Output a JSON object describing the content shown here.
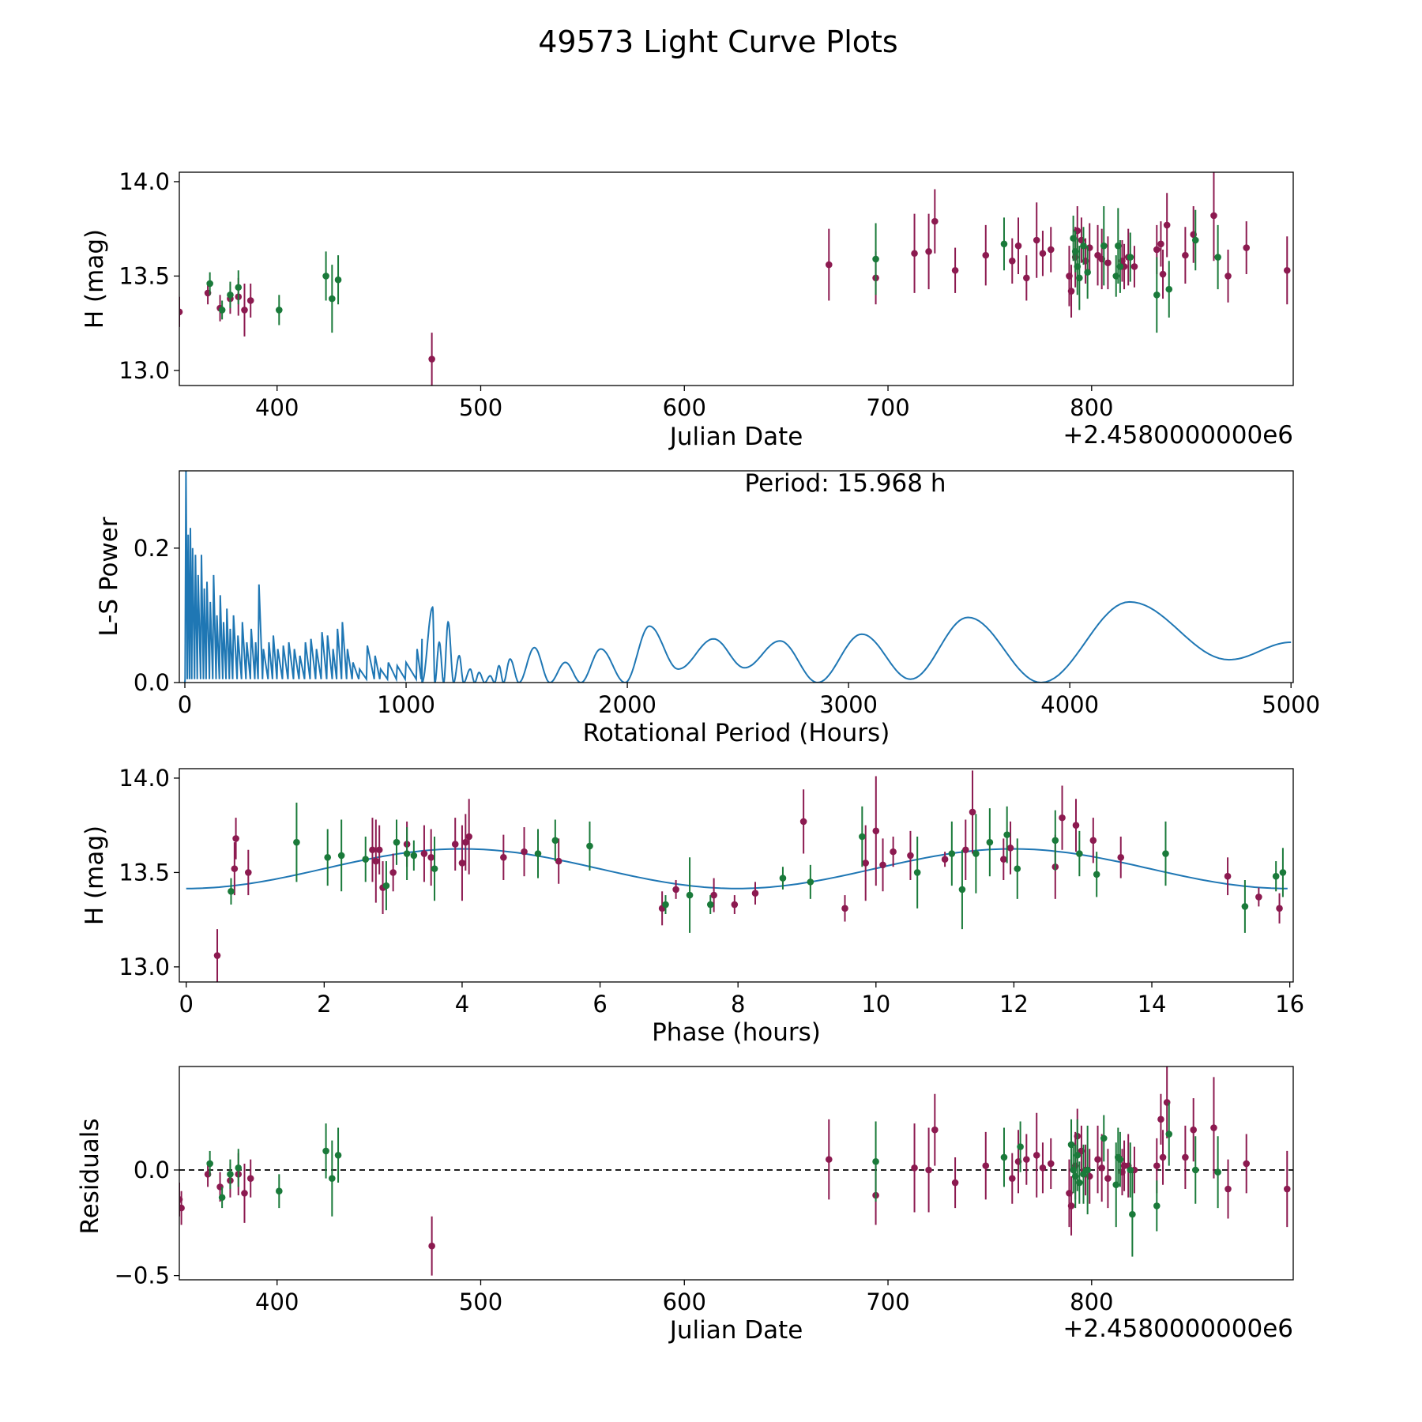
{
  "figure_title": "49573 Light Curve Plots",
  "colors": {
    "red": "#8c1a50",
    "green": "#1a7a3a",
    "curve": "#1f77b4"
  },
  "chart_data": [
    {
      "type": "scatter",
      "title": "",
      "xlabel": "Julian Date",
      "ylabel": "H (mag)",
      "offset_text": "+2.4580000000e6",
      "xlim": [
        352,
        899
      ],
      "ylim": [
        12.92,
        14.05
      ],
      "xticks": [
        400,
        500,
        600,
        700,
        800
      ],
      "yticks": [
        13.0,
        13.5,
        14.0
      ],
      "series": [
        {
          "name": "red",
          "x": [
            352,
            366,
            372,
            377,
            381,
            384,
            387,
            476,
            671,
            694,
            713,
            720,
            723,
            733,
            748,
            761,
            764,
            768,
            773,
            776,
            780,
            789,
            790,
            792,
            793,
            795,
            797,
            799,
            803,
            805,
            808,
            815,
            816,
            818,
            821,
            832,
            834,
            835,
            837,
            846,
            850,
            860,
            867,
            876,
            896
          ],
          "y": [
            13.31,
            13.41,
            13.33,
            13.38,
            13.39,
            13.32,
            13.37,
            13.06,
            13.56,
            13.49,
            13.62,
            13.63,
            13.79,
            13.53,
            13.61,
            13.58,
            13.66,
            13.49,
            13.69,
            13.62,
            13.64,
            13.5,
            13.42,
            13.6,
            13.74,
            13.69,
            13.58,
            13.65,
            13.61,
            13.59,
            13.57,
            13.58,
            13.55,
            13.6,
            13.55,
            13.64,
            13.67,
            13.51,
            13.77,
            13.61,
            13.72,
            13.82,
            13.5,
            13.65,
            13.53
          ],
          "err": [
            0.08,
            0.06,
            0.07,
            0.08,
            0.1,
            0.14,
            0.09,
            0.14,
            0.19,
            0.14,
            0.21,
            0.2,
            0.17,
            0.12,
            0.16,
            0.12,
            0.15,
            0.12,
            0.2,
            0.12,
            0.12,
            0.16,
            0.14,
            0.16,
            0.13,
            0.12,
            0.12,
            0.13,
            0.16,
            0.16,
            0.14,
            0.11,
            0.12,
            0.15,
            0.11,
            0.13,
            0.12,
            0.13,
            0.17,
            0.15,
            0.15,
            0.24,
            0.14,
            0.14,
            0.18
          ]
        },
        {
          "name": "green",
          "x": [
            367,
            373,
            377,
            381,
            401,
            424,
            427,
            430,
            694,
            757,
            791,
            792,
            793,
            794,
            796,
            798,
            806,
            812,
            813,
            814,
            819,
            832,
            838,
            851,
            862
          ],
          "y": [
            13.46,
            13.32,
            13.4,
            13.44,
            13.32,
            13.5,
            13.38,
            13.48,
            13.59,
            13.67,
            13.7,
            13.63,
            13.55,
            13.49,
            13.66,
            13.52,
            13.66,
            13.5,
            13.66,
            13.55,
            13.6,
            13.4,
            13.43,
            13.69,
            13.6
          ],
          "err": [
            0.06,
            0.05,
            0.07,
            0.09,
            0.08,
            0.13,
            0.18,
            0.13,
            0.19,
            0.14,
            0.12,
            0.11,
            0.15,
            0.17,
            0.1,
            0.14,
            0.21,
            0.11,
            0.2,
            0.14,
            0.13,
            0.2,
            0.15,
            0.16,
            0.17
          ]
        }
      ]
    },
    {
      "type": "line",
      "title": "",
      "xlabel": "Rotational Period (Hours)",
      "ylabel": "L-S Power",
      "annotation": "Period: 15.968 h",
      "xlim": [
        -25,
        5010
      ],
      "ylim": [
        0,
        0.315
      ],
      "xticks": [
        0,
        1000,
        2000,
        3000,
        4000,
        5000
      ],
      "yticks": [
        0.0,
        0.2
      ],
      "noise_peaks": [
        [
          5,
          0.315
        ],
        [
          15,
          0.22
        ],
        [
          25,
          0.23
        ],
        [
          35,
          0.2
        ],
        [
          48,
          0.19
        ],
        [
          60,
          0.16
        ],
        [
          75,
          0.19
        ],
        [
          88,
          0.14
        ],
        [
          100,
          0.15
        ],
        [
          115,
          0.12
        ],
        [
          130,
          0.16
        ],
        [
          145,
          0.1
        ],
        [
          160,
          0.13
        ],
        [
          175,
          0.09
        ],
        [
          190,
          0.11
        ],
        [
          205,
          0.08
        ],
        [
          220,
          0.1
        ],
        [
          240,
          0.07
        ],
        [
          260,
          0.09
        ],
        [
          280,
          0.06
        ],
        [
          300,
          0.08
        ],
        [
          320,
          0.06
        ],
        [
          335,
          0.146
        ],
        [
          355,
          0.05
        ],
        [
          380,
          0.06
        ],
        [
          400,
          0.07
        ],
        [
          420,
          0.05
        ],
        [
          445,
          0.055
        ],
        [
          470,
          0.06
        ],
        [
          495,
          0.05
        ],
        [
          520,
          0.04
        ],
        [
          545,
          0.06
        ],
        [
          570,
          0.065
        ],
        [
          595,
          0.05
        ],
        [
          620,
          0.075
        ],
        [
          645,
          0.07
        ],
        [
          670,
          0.05
        ],
        [
          690,
          0.08
        ],
        [
          712,
          0.09
        ],
        [
          735,
          0.05
        ],
        [
          760,
          0.03
        ],
        [
          790,
          0.02
        ],
        [
          825,
          0.055
        ],
        [
          860,
          0.04
        ],
        [
          885,
          0.02
        ],
        [
          920,
          0.03
        ],
        [
          960,
          0.025
        ],
        [
          1000,
          0.03
        ],
        [
          1050,
          0.05
        ],
        [
          1072,
          0.065
        ]
      ],
      "peaks": [
        [
          1072,
          0.065
        ],
        [
          1120,
          0.112
        ],
        [
          1150,
          0.06
        ],
        [
          1190,
          0.09
        ],
        [
          1240,
          0.04
        ],
        [
          1290,
          0.02
        ],
        [
          1330,
          0.015
        ],
        [
          1380,
          0.01
        ],
        [
          1420,
          0.025
        ],
        [
          1470,
          0.035
        ],
        [
          1580,
          0.052
        ],
        [
          1720,
          0.03
        ],
        [
          1880,
          0.05
        ],
        [
          2100,
          0.084
        ],
        [
          2390,
          0.065
        ],
        [
          2690,
          0.062
        ],
        [
          3060,
          0.072
        ],
        [
          3540,
          0.097
        ],
        [
          4270,
          0.12
        ],
        [
          4720,
          0.034
        ],
        [
          5000,
          0.06
        ]
      ],
      "valleys": [
        [
          1072,
          0.0
        ],
        [
          1130,
          0.0
        ],
        [
          1170,
          0.0
        ],
        [
          1215,
          0.0
        ],
        [
          1260,
          0.0
        ],
        [
          1310,
          0.0
        ],
        [
          1355,
          0.0
        ],
        [
          1400,
          0.0
        ],
        [
          1440,
          0.0
        ],
        [
          1510,
          0.0
        ],
        [
          1650,
          0.0
        ],
        [
          1790,
          0.0
        ],
        [
          1990,
          0.0
        ],
        [
          2230,
          0.02
        ],
        [
          2530,
          0.022
        ],
        [
          2860,
          0.0
        ],
        [
          3280,
          0.005
        ],
        [
          3870,
          0.0
        ]
      ]
    },
    {
      "type": "scatter",
      "title": "",
      "xlabel": "Phase (hours)",
      "ylabel": "H (mag)",
      "xlim": [
        -0.1,
        16.05
      ],
      "ylim": [
        12.92,
        14.05
      ],
      "xticks": [
        0,
        2,
        4,
        6,
        8,
        10,
        12,
        14,
        16
      ],
      "yticks": [
        13.0,
        13.5,
        14.0
      ],
      "model": {
        "period_h": 15.968,
        "mean": 13.52,
        "amp": 0.105,
        "phase_of_min_h": 0.0
      },
      "series": [
        {
          "name": "red",
          "x": [
            0.45,
            0.7,
            0.72,
            0.9,
            2.7,
            2.75,
            2.8,
            2.85,
            3.0,
            3.2,
            3.45,
            3.55,
            3.9,
            4.0,
            4.05,
            4.1,
            4.6,
            4.9,
            5.4,
            6.9,
            7.1,
            7.65,
            7.95,
            8.25,
            8.95,
            9.55,
            9.85,
            10.0,
            10.1,
            10.25,
            10.5,
            11.0,
            11.3,
            11.4,
            11.85,
            11.95,
            12.6,
            12.7,
            12.9,
            13.15,
            13.55,
            15.1,
            15.55,
            15.85
          ],
          "y": [
            13.06,
            13.52,
            13.68,
            13.5,
            13.62,
            13.56,
            13.62,
            13.42,
            13.5,
            13.65,
            13.6,
            13.58,
            13.65,
            13.55,
            13.66,
            13.69,
            13.58,
            13.61,
            13.56,
            13.31,
            13.41,
            13.38,
            13.33,
            13.39,
            13.77,
            13.31,
            13.55,
            13.72,
            13.54,
            13.61,
            13.59,
            13.57,
            13.62,
            13.82,
            13.57,
            13.63,
            13.53,
            13.79,
            13.75,
            13.67,
            13.58,
            13.48,
            13.37,
            13.31
          ],
          "err": [
            0.14,
            0.14,
            0.11,
            0.12,
            0.17,
            0.22,
            0.13,
            0.14,
            0.1,
            0.12,
            0.15,
            0.15,
            0.14,
            0.2,
            0.15,
            0.2,
            0.12,
            0.13,
            0.12,
            0.09,
            0.05,
            0.09,
            0.05,
            0.06,
            0.17,
            0.07,
            0.2,
            0.29,
            0.14,
            0.08,
            0.13,
            0.04,
            0.16,
            0.22,
            0.11,
            0.14,
            0.17,
            0.17,
            0.14,
            0.12,
            0.11,
            0.1,
            0.05,
            0.08
          ]
        },
        {
          "name": "green",
          "x": [
            0.65,
            1.6,
            2.05,
            2.25,
            2.6,
            2.9,
            3.05,
            3.2,
            3.3,
            3.6,
            5.1,
            5.35,
            5.85,
            6.95,
            7.3,
            7.6,
            8.65,
            9.05,
            9.8,
            10.6,
            11.1,
            11.25,
            11.45,
            11.65,
            11.9,
            12.05,
            12.6,
            12.95,
            13.2,
            14.2,
            15.35,
            15.8,
            15.9
          ],
          "y": [
            13.4,
            13.66,
            13.58,
            13.59,
            13.57,
            13.43,
            13.66,
            13.6,
            13.59,
            13.52,
            13.6,
            13.67,
            13.64,
            13.33,
            13.38,
            13.33,
            13.47,
            13.45,
            13.69,
            13.5,
            13.6,
            13.41,
            13.6,
            13.66,
            13.7,
            13.52,
            13.67,
            13.6,
            13.49,
            13.6,
            13.32,
            13.48,
            13.5
          ],
          "err": [
            0.07,
            0.21,
            0.15,
            0.19,
            0.12,
            0.13,
            0.12,
            0.14,
            0.08,
            0.17,
            0.13,
            0.11,
            0.13,
            0.05,
            0.2,
            0.05,
            0.06,
            0.09,
            0.16,
            0.19,
            0.17,
            0.21,
            0.21,
            0.18,
            0.15,
            0.16,
            0.16,
            0.12,
            0.12,
            0.17,
            0.14,
            0.08,
            0.13
          ]
        }
      ]
    },
    {
      "type": "scatter",
      "title": "",
      "xlabel": "Julian Date",
      "ylabel": "Residuals",
      "offset_text": "+2.4580000000e6",
      "xlim": [
        352,
        899
      ],
      "ylim": [
        -0.52,
        0.49
      ],
      "xticks": [
        400,
        500,
        600,
        700,
        800
      ],
      "yticks": [
        -0.5,
        0.0
      ],
      "ytick_labels": [
        "−0.5",
        "0.0"
      ],
      "reference_line": 0.0,
      "series": [
        {
          "name": "red",
          "x": [
            352,
            353,
            366,
            372,
            377,
            381,
            384,
            387,
            476,
            671,
            694,
            713,
            720,
            723,
            733,
            748,
            761,
            764,
            768,
            773,
            776,
            780,
            789,
            790,
            792,
            793,
            795,
            797,
            799,
            803,
            805,
            808,
            815,
            816,
            818,
            821,
            832,
            834,
            835,
            837,
            846,
            850,
            860,
            867,
            876,
            896
          ],
          "y": [
            -0.14,
            -0.18,
            -0.02,
            -0.08,
            -0.05,
            -0.02,
            -0.11,
            -0.04,
            -0.36,
            0.05,
            -0.12,
            0.01,
            0.0,
            0.19,
            -0.06,
            0.02,
            -0.04,
            0.04,
            0.05,
            0.07,
            0.01,
            0.03,
            -0.11,
            -0.17,
            0.02,
            0.16,
            0.09,
            0.0,
            -0.03,
            0.05,
            0.01,
            -0.04,
            -0.01,
            0.02,
            0.02,
            0.0,
            0.02,
            0.24,
            0.06,
            0.32,
            0.06,
            0.19,
            0.2,
            -0.09,
            0.03,
            -0.09
          ],
          "err": [
            0.08,
            0.08,
            0.06,
            0.07,
            0.08,
            0.1,
            0.14,
            0.09,
            0.14,
            0.19,
            0.14,
            0.21,
            0.2,
            0.17,
            0.12,
            0.16,
            0.12,
            0.15,
            0.12,
            0.2,
            0.12,
            0.12,
            0.16,
            0.14,
            0.16,
            0.13,
            0.12,
            0.12,
            0.13,
            0.16,
            0.16,
            0.14,
            0.11,
            0.12,
            0.15,
            0.11,
            0.13,
            0.12,
            0.13,
            0.17,
            0.15,
            0.15,
            0.24,
            0.14,
            0.14,
            0.18
          ]
        },
        {
          "name": "green",
          "x": [
            367,
            373,
            377,
            381,
            401,
            424,
            427,
            430,
            694,
            757,
            765,
            790,
            791,
            792,
            793,
            794,
            796,
            798,
            806,
            812,
            813,
            814,
            819,
            820,
            832,
            838,
            851,
            862
          ],
          "y": [
            0.03,
            -0.13,
            -0.02,
            0.01,
            -0.1,
            0.09,
            -0.04,
            0.07,
            0.04,
            0.06,
            0.11,
            0.12,
            0.0,
            -0.03,
            0.07,
            -0.06,
            -0.02,
            0.0,
            0.15,
            -0.07,
            0.06,
            0.05,
            0.0,
            -0.21,
            -0.17,
            0.17,
            0.0,
            -0.01
          ],
          "err": [
            0.06,
            0.05,
            0.07,
            0.09,
            0.08,
            0.13,
            0.18,
            0.13,
            0.19,
            0.14,
            0.12,
            0.12,
            0.11,
            0.15,
            0.17,
            0.1,
            0.14,
            0.21,
            0.11,
            0.2,
            0.14,
            0.13,
            0.13,
            0.2,
            0.12,
            0.15,
            0.16,
            0.17
          ]
        }
      ]
    }
  ]
}
